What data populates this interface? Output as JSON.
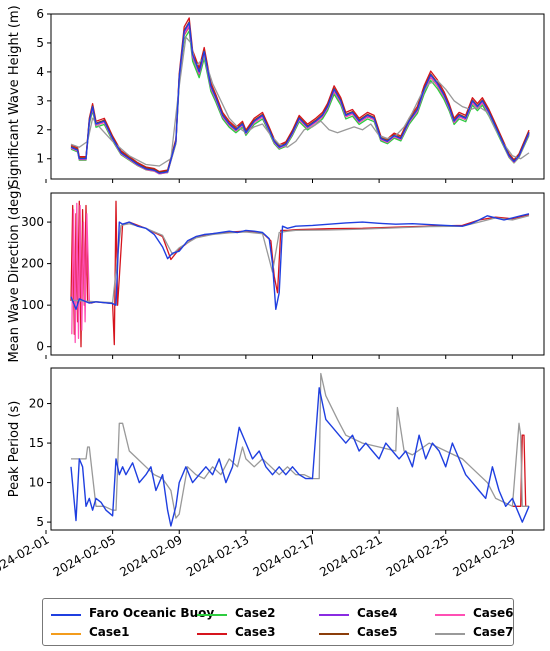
{
  "chart_data": [
    {
      "type": "line",
      "ylabel": "Significant Wave Height (m)",
      "ylim": [
        0.3,
        6.0
      ],
      "yticks": [
        1,
        2,
        3,
        4,
        5,
        6
      ],
      "series": [
        {
          "name": "Faro Oceanic Buoy",
          "color": "#1f3fe0",
          "x": [
            2.5,
            2.9,
            3.0,
            3.4,
            3.6,
            3.8,
            4.0,
            4.5,
            5.0,
            5.5,
            6.0,
            6.5,
            7.0,
            7.5,
            7.8,
            8.3,
            8.8,
            9.0,
            9.3,
            9.6,
            9.8,
            10.2,
            10.5,
            10.9,
            11.2,
            11.6,
            12.0,
            12.4,
            12.8,
            13.0,
            13.5,
            14.0,
            14.4,
            14.7,
            15.0,
            15.4,
            15.8,
            16.2,
            16.7,
            17.2,
            17.6,
            17.9,
            18.3,
            18.7,
            19.0,
            19.4,
            19.8,
            20.3,
            20.7,
            21.1,
            21.5,
            21.9,
            22.3,
            22.8,
            23.3,
            23.7,
            24.1,
            24.5,
            24.9,
            25.2,
            25.5,
            25.8,
            26.2,
            26.6,
            26.9,
            27.2,
            27.6,
            28.0,
            28.4,
            28.8,
            29.1,
            29.4,
            29.7,
            30.0
          ],
          "y": [
            1.4,
            1.3,
            1.0,
            1.0,
            2.3,
            2.8,
            2.2,
            2.3,
            1.7,
            1.2,
            1.0,
            0.8,
            0.65,
            0.6,
            0.5,
            0.55,
            1.6,
            3.8,
            5.4,
            5.7,
            4.6,
            4.0,
            4.7,
            3.5,
            3.1,
            2.5,
            2.2,
            2.0,
            2.2,
            1.9,
            2.3,
            2.5,
            2.0,
            1.6,
            1.4,
            1.5,
            1.9,
            2.4,
            2.1,
            2.3,
            2.5,
            2.8,
            3.4,
            3.0,
            2.5,
            2.6,
            2.3,
            2.5,
            2.4,
            1.7,
            1.6,
            1.8,
            1.7,
            2.3,
            2.7,
            3.4,
            3.9,
            3.6,
            3.2,
            2.8,
            2.3,
            2.5,
            2.4,
            3.0,
            2.8,
            3.0,
            2.6,
            2.1,
            1.6,
            1.1,
            0.9,
            1.1,
            1.5,
            1.9
          ]
        },
        {
          "name": "Case1",
          "color": "#f39c1c",
          "offset": 0.02,
          "scale": 0.97
        },
        {
          "name": "Case2",
          "color": "#2ecc40",
          "offset": 0.0,
          "scale": 0.95
        },
        {
          "name": "Case3",
          "color": "#d6141d",
          "offset": 0.05,
          "scale": 1.02
        },
        {
          "name": "Case4",
          "color": "#8a2be2",
          "offset": 0.0,
          "scale": 0.98
        },
        {
          "name": "Case5",
          "color": "#8b3d0a",
          "offset": 0.03,
          "scale": 1.0
        },
        {
          "name": "Case6",
          "color": "#ff4fb4",
          "offset": -0.02,
          "scale": 0.99
        },
        {
          "name": "Case7",
          "color": "#999999",
          "offset": 0.0,
          "scale": 0.96,
          "x": [
            2.5,
            3.0,
            3.5,
            3.8,
            4.2,
            5.0,
            6.0,
            7.0,
            7.8,
            8.5,
            9.0,
            9.4,
            9.7,
            10.0,
            10.5,
            11.0,
            11.5,
            12.0,
            12.5,
            13.0,
            13.5,
            14.0,
            14.5,
            15.0,
            15.5,
            16.0,
            16.5,
            17.0,
            17.5,
            18.0,
            18.5,
            19.0,
            19.5,
            20.0,
            20.5,
            21.0,
            21.5,
            22.0,
            22.5,
            23.0,
            23.5,
            24.0,
            24.5,
            25.0,
            25.5,
            26.0,
            26.5,
            27.0,
            27.5,
            28.0,
            28.5,
            29.0,
            29.5,
            30.0
          ],
          "y": [
            1.5,
            1.4,
            1.6,
            2.4,
            2.1,
            1.6,
            1.1,
            0.8,
            0.75,
            1.0,
            3.5,
            5.2,
            5.0,
            4.2,
            4.5,
            3.6,
            3.0,
            2.4,
            2.1,
            1.9,
            2.1,
            2.2,
            1.8,
            1.5,
            1.4,
            1.6,
            2.0,
            2.1,
            2.3,
            2.0,
            1.9,
            2.0,
            2.1,
            2.0,
            2.2,
            1.8,
            1.7,
            1.8,
            2.1,
            2.6,
            3.2,
            3.6,
            3.7,
            3.4,
            3.0,
            2.8,
            2.7,
            2.8,
            2.6,
            2.0,
            1.5,
            1.1,
            1.0,
            1.2
          ]
        }
      ]
    },
    {
      "type": "line",
      "ylabel": "Mean Wave Direction (deg)",
      "ylim": [
        -20,
        370
      ],
      "yticks": [
        0,
        100,
        200,
        300
      ],
      "series": [
        {
          "name": "Faro Oceanic Buoy",
          "color": "#1f3fe0",
          "x": [
            2.5,
            2.8,
            3.0,
            3.3,
            3.6,
            4.0,
            4.5,
            5.0,
            5.2,
            5.4,
            5.6,
            6.0,
            6.5,
            7.0,
            7.5,
            8.0,
            8.3,
            8.6,
            9.0,
            9.5,
            10.0,
            10.5,
            11.0,
            11.5,
            12.0,
            12.5,
            13.0,
            13.5,
            14.0,
            14.4,
            14.6,
            14.8,
            15.0,
            15.2,
            15.5,
            16.0,
            17.0,
            18.0,
            19.0,
            20.0,
            21.0,
            22.0,
            23.0,
            24.0,
            25.0,
            26.0,
            26.5,
            27.0,
            27.5,
            28.0,
            28.5,
            29.0,
            29.5,
            30.0
          ],
          "y": [
            120,
            90,
            115,
            110,
            105,
            108,
            106,
            104,
            100,
            300,
            295,
            300,
            290,
            285,
            270,
            240,
            212,
            225,
            230,
            255,
            265,
            270,
            272,
            275,
            278,
            275,
            280,
            278,
            275,
            260,
            200,
            90,
            130,
            290,
            285,
            290,
            292,
            295,
            298,
            300,
            297,
            295,
            296,
            294,
            292,
            290,
            296,
            305,
            315,
            310,
            305,
            310,
            315,
            320
          ]
        },
        {
          "name": "Case3",
          "color": "#d6141d",
          "x": [
            2.5,
            2.6,
            2.7,
            2.8,
            2.9,
            3.0,
            3.1,
            3.2,
            3.3,
            3.4,
            3.5,
            3.7,
            4.0,
            5.0,
            5.1,
            5.2,
            5.3,
            5.6,
            6.0,
            7.0,
            8.0,
            8.5,
            9.0,
            10.0,
            11.0,
            12.0,
            13.0,
            14.0,
            14.5,
            14.7,
            14.9,
            15.1,
            15.5,
            16.0,
            18.0,
            20.0,
            22.0,
            24.0,
            26.0,
            27.0,
            28.0,
            29.0,
            30.0
          ],
          "y": [
            110,
            340,
            30,
            320,
            60,
            350,
            0,
            330,
            100,
            340,
            110,
            105,
            108,
            104,
            5,
            350,
            100,
            295,
            300,
            285,
            265,
            210,
            235,
            265,
            272,
            276,
            278,
            274,
            255,
            170,
            130,
            280,
            280,
            282,
            284,
            285,
            288,
            290,
            292,
            305,
            312,
            308,
            318
          ]
        },
        {
          "name": "Case6",
          "color": "#ff4fb4",
          "x": [
            2.55,
            2.65,
            2.75,
            2.85,
            2.95,
            3.05,
            3.15,
            3.25,
            3.35,
            3.45,
            3.6
          ],
          "y": [
            30,
            330,
            10,
            345,
            20,
            340,
            40,
            300,
            60,
            320,
            110
          ]
        },
        {
          "name": "Case7",
          "color": "#999999",
          "x": [
            2.5,
            4.0,
            5.0,
            5.5,
            6.0,
            7.0,
            8.0,
            8.6,
            9.0,
            10.0,
            11.0,
            12.0,
            13.0,
            14.0,
            14.6,
            15.0,
            15.5,
            16.0,
            18.0,
            20.0,
            22.0,
            24.0,
            26.0,
            27.0,
            28.0,
            29.0,
            30.0
          ],
          "y": [
            112,
            108,
            106,
            292,
            296,
            285,
            268,
            222,
            238,
            262,
            270,
            274,
            276,
            272,
            180,
            275,
            278,
            280,
            281,
            283,
            286,
            289,
            290,
            300,
            310,
            305,
            315
          ]
        }
      ]
    },
    {
      "type": "line",
      "ylabel": "Peak Period (s)",
      "ylim": [
        4,
        24.5
      ],
      "yticks": [
        5,
        10,
        15,
        20
      ],
      "series": [
        {
          "name": "Faro Oceanic Buoy",
          "color": "#1f3fe0",
          "x": [
            2.5,
            2.8,
            3.0,
            3.2,
            3.4,
            3.6,
            3.8,
            4.0,
            4.3,
            4.6,
            5.0,
            5.2,
            5.4,
            5.6,
            5.8,
            6.2,
            6.6,
            7.0,
            7.3,
            7.6,
            8.0,
            8.3,
            8.5,
            8.8,
            9.0,
            9.4,
            9.8,
            10.2,
            10.6,
            11.0,
            11.4,
            11.8,
            12.2,
            12.6,
            13.0,
            13.4,
            13.8,
            14.2,
            14.6,
            15.0,
            15.4,
            15.8,
            16.2,
            16.6,
            17.0,
            17.4,
            17.6,
            17.8,
            18.2,
            18.6,
            19.0,
            19.4,
            19.8,
            20.2,
            20.6,
            21.0,
            21.4,
            21.8,
            22.2,
            22.6,
            23.0,
            23.4,
            23.8,
            24.2,
            24.6,
            25.0,
            25.4,
            25.8,
            26.2,
            26.6,
            27.0,
            27.4,
            27.8,
            28.2,
            28.6,
            29.0,
            29.4,
            29.6,
            29.8,
            30.0
          ],
          "y": [
            12,
            5.2,
            13,
            12,
            7,
            8,
            6.5,
            8,
            7.5,
            6.5,
            5.8,
            13,
            11,
            12,
            11,
            12.5,
            10,
            11,
            12,
            9,
            11,
            6.5,
            4.5,
            7,
            10,
            12,
            10,
            11,
            12,
            11,
            13,
            10,
            12,
            17,
            15,
            13,
            14,
            12,
            11,
            12,
            11,
            12,
            11,
            10.5,
            10.5,
            22,
            20,
            18,
            17,
            16,
            15,
            16,
            14,
            15,
            14,
            13,
            15,
            14,
            13,
            14,
            12,
            16,
            13,
            15,
            14,
            12,
            15,
            13,
            11,
            10,
            9,
            8,
            12,
            9,
            7,
            8,
            6,
            5,
            6,
            7
          ]
        },
        {
          "name": "Case3",
          "color": "#d6141d",
          "x": [
            29.0,
            29.5,
            29.6,
            29.7,
            29.8,
            30.0
          ],
          "y": [
            7,
            7,
            16,
            16,
            7,
            7
          ]
        },
        {
          "name": "Case7",
          "color": "#999999",
          "x": [
            2.5,
            3.0,
            3.4,
            3.5,
            3.6,
            4.0,
            4.5,
            5.0,
            5.2,
            5.4,
            5.6,
            6.0,
            6.5,
            7.0,
            7.5,
            8.0,
            8.5,
            8.8,
            9.0,
            9.5,
            10.0,
            10.5,
            11.0,
            11.5,
            12.0,
            12.5,
            12.8,
            13.0,
            13.5,
            14.0,
            14.5,
            15.0,
            15.5,
            16.0,
            16.5,
            17.0,
            17.4,
            17.5,
            17.8,
            18.5,
            19.0,
            20.0,
            21.0,
            22.0,
            22.1,
            22.5,
            23.0,
            24.0,
            25.0,
            26.0,
            26.5,
            27.0,
            27.5,
            28.0,
            28.5,
            29.0,
            29.4,
            29.5,
            29.6,
            30.0
          ],
          "y": [
            13,
            13,
            13,
            14.5,
            14.5,
            7,
            7,
            6.5,
            6.5,
            17.5,
            17.5,
            14,
            13,
            12,
            11,
            10.5,
            9,
            5.5,
            6,
            12,
            11,
            10.5,
            12,
            11,
            13,
            12,
            14.5,
            13,
            12,
            13,
            12,
            11,
            12,
            11,
            11,
            10.5,
            10.5,
            23.8,
            21,
            18,
            16,
            15,
            14.5,
            14,
            19.5,
            14,
            13.5,
            15,
            14,
            13,
            12,
            11,
            10,
            8,
            7.5,
            7,
            17.5,
            16,
            7,
            7
          ]
        }
      ]
    }
  ],
  "x_axis": {
    "xlim": [
      1.3,
      30.9
    ],
    "ticks": [
      {
        "day": 1,
        "label": "2024-02-01"
      },
      {
        "day": 5,
        "label": "2024-02-05"
      },
      {
        "day": 9,
        "label": "2024-02-09"
      },
      {
        "day": 13,
        "label": "2024-02-13"
      },
      {
        "day": 17,
        "label": "2024-02-17"
      },
      {
        "day": 21,
        "label": "2024-02-21"
      },
      {
        "day": 25,
        "label": "2024-02-25"
      },
      {
        "day": 29,
        "label": "2024-02-29"
      }
    ]
  },
  "legend": {
    "placement": "bottom",
    "entries": [
      {
        "label": "Faro Oceanic Buoy",
        "color": "#1f3fe0"
      },
      {
        "label": "Case1",
        "color": "#f39c1c"
      },
      {
        "label": "Case2",
        "color": "#2ecc40"
      },
      {
        "label": "Case3",
        "color": "#d6141d"
      },
      {
        "label": "Case4",
        "color": "#8a2be2"
      },
      {
        "label": "Case5",
        "color": "#8b3d0a"
      },
      {
        "label": "Case6",
        "color": "#ff4fb4"
      },
      {
        "label": "Case7",
        "color": "#999999"
      }
    ]
  }
}
